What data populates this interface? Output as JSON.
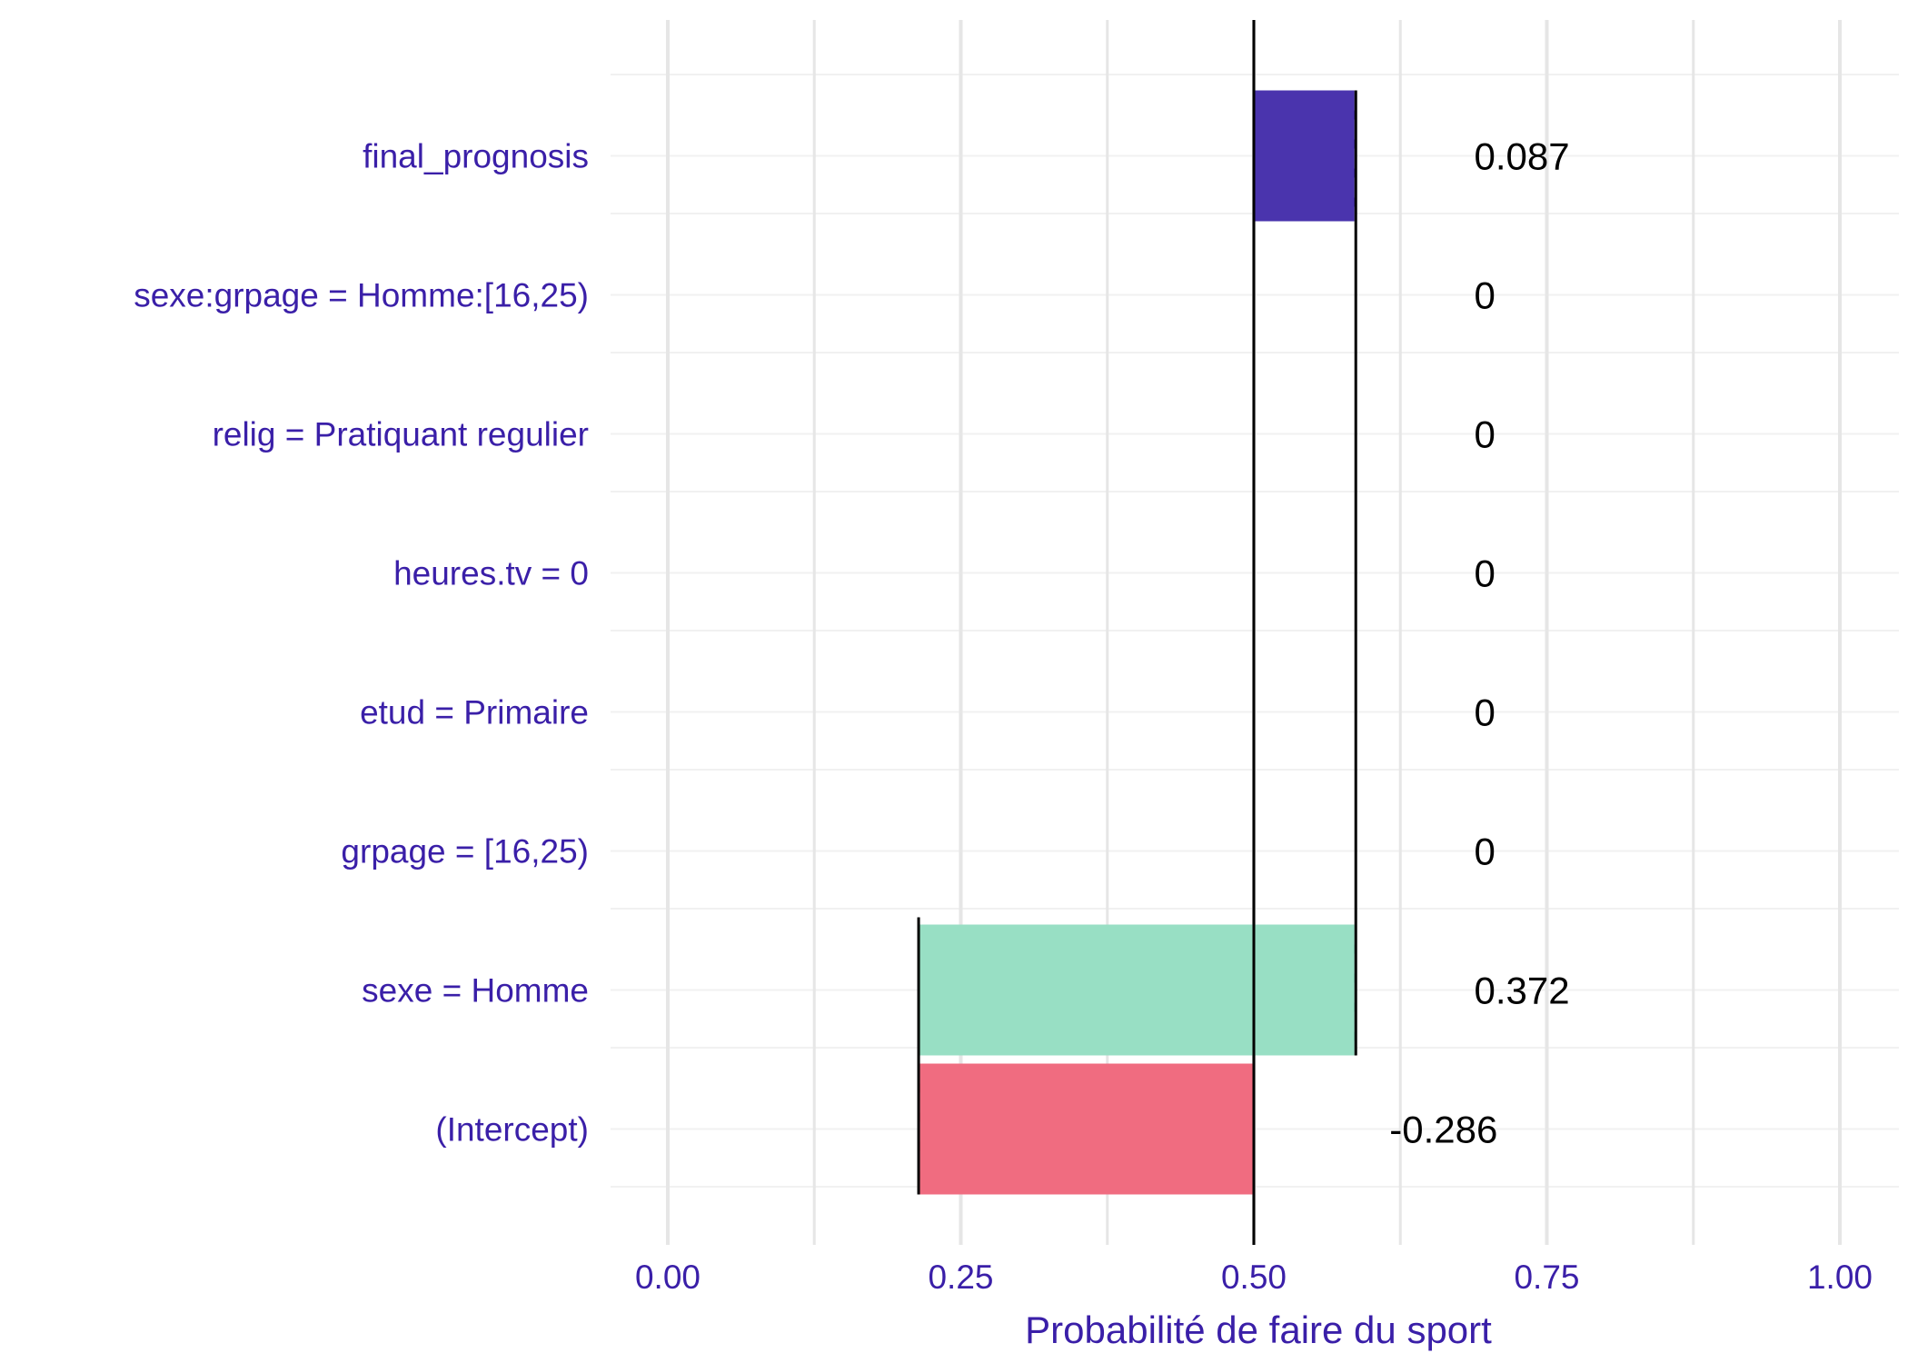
{
  "chart_data": {
    "type": "bar",
    "subtype": "waterfall",
    "xlabel": "Probabilité de faire du sport",
    "xlim": [
      -0.05,
      1.05
    ],
    "xticks": [
      "0.00",
      "0.25",
      "0.50",
      "0.75",
      "1.00"
    ],
    "xtick_values": [
      0,
      0.25,
      0.5,
      0.75,
      1.0
    ],
    "grid": true,
    "baseline": 0.5,
    "categories": [
      "final_prognosis",
      "sexe:grpage = Homme:[16,25)",
      "relig = Pratiquant regulier",
      "heures.tv = 0",
      "etud = Primaire",
      "grpage = [16,25)",
      "sexe = Homme",
      "(Intercept)"
    ],
    "bars": [
      {
        "category": "final_prognosis",
        "start": 0.5,
        "end": 0.587,
        "label": "0.087",
        "color": "#4a34ad"
      },
      {
        "category": "sexe:grpage = Homme:[16,25)",
        "start": 0.587,
        "end": 0.587,
        "label": "0",
        "color": "#98dfc4"
      },
      {
        "category": "relig = Pratiquant regulier",
        "start": 0.587,
        "end": 0.587,
        "label": "0",
        "color": "#98dfc4"
      },
      {
        "category": "heures.tv = 0",
        "start": 0.587,
        "end": 0.587,
        "label": "0",
        "color": "#98dfc4"
      },
      {
        "category": "etud = Primaire",
        "start": 0.587,
        "end": 0.587,
        "label": "0",
        "color": "#98dfc4"
      },
      {
        "category": "grpage = [16,25)",
        "start": 0.587,
        "end": 0.587,
        "label": "0",
        "color": "#98dfc4"
      },
      {
        "category": "sexe = Homme",
        "start": 0.214,
        "end": 0.587,
        "label": "0.372",
        "color": "#98dfc4"
      },
      {
        "category": "(Intercept)",
        "start": 0.5,
        "end": 0.214,
        "label": "-0.286",
        "color": "#f06c80"
      }
    ],
    "label_x": [
      0.7,
      0.7,
      0.7,
      0.7,
      0.7,
      0.7,
      0.7,
      0.63
    ],
    "colors": {
      "text": "#3a1fa8",
      "grid": "#e6e6e6",
      "minor_grid": "#f1f1f1",
      "vline": "#000000"
    }
  }
}
